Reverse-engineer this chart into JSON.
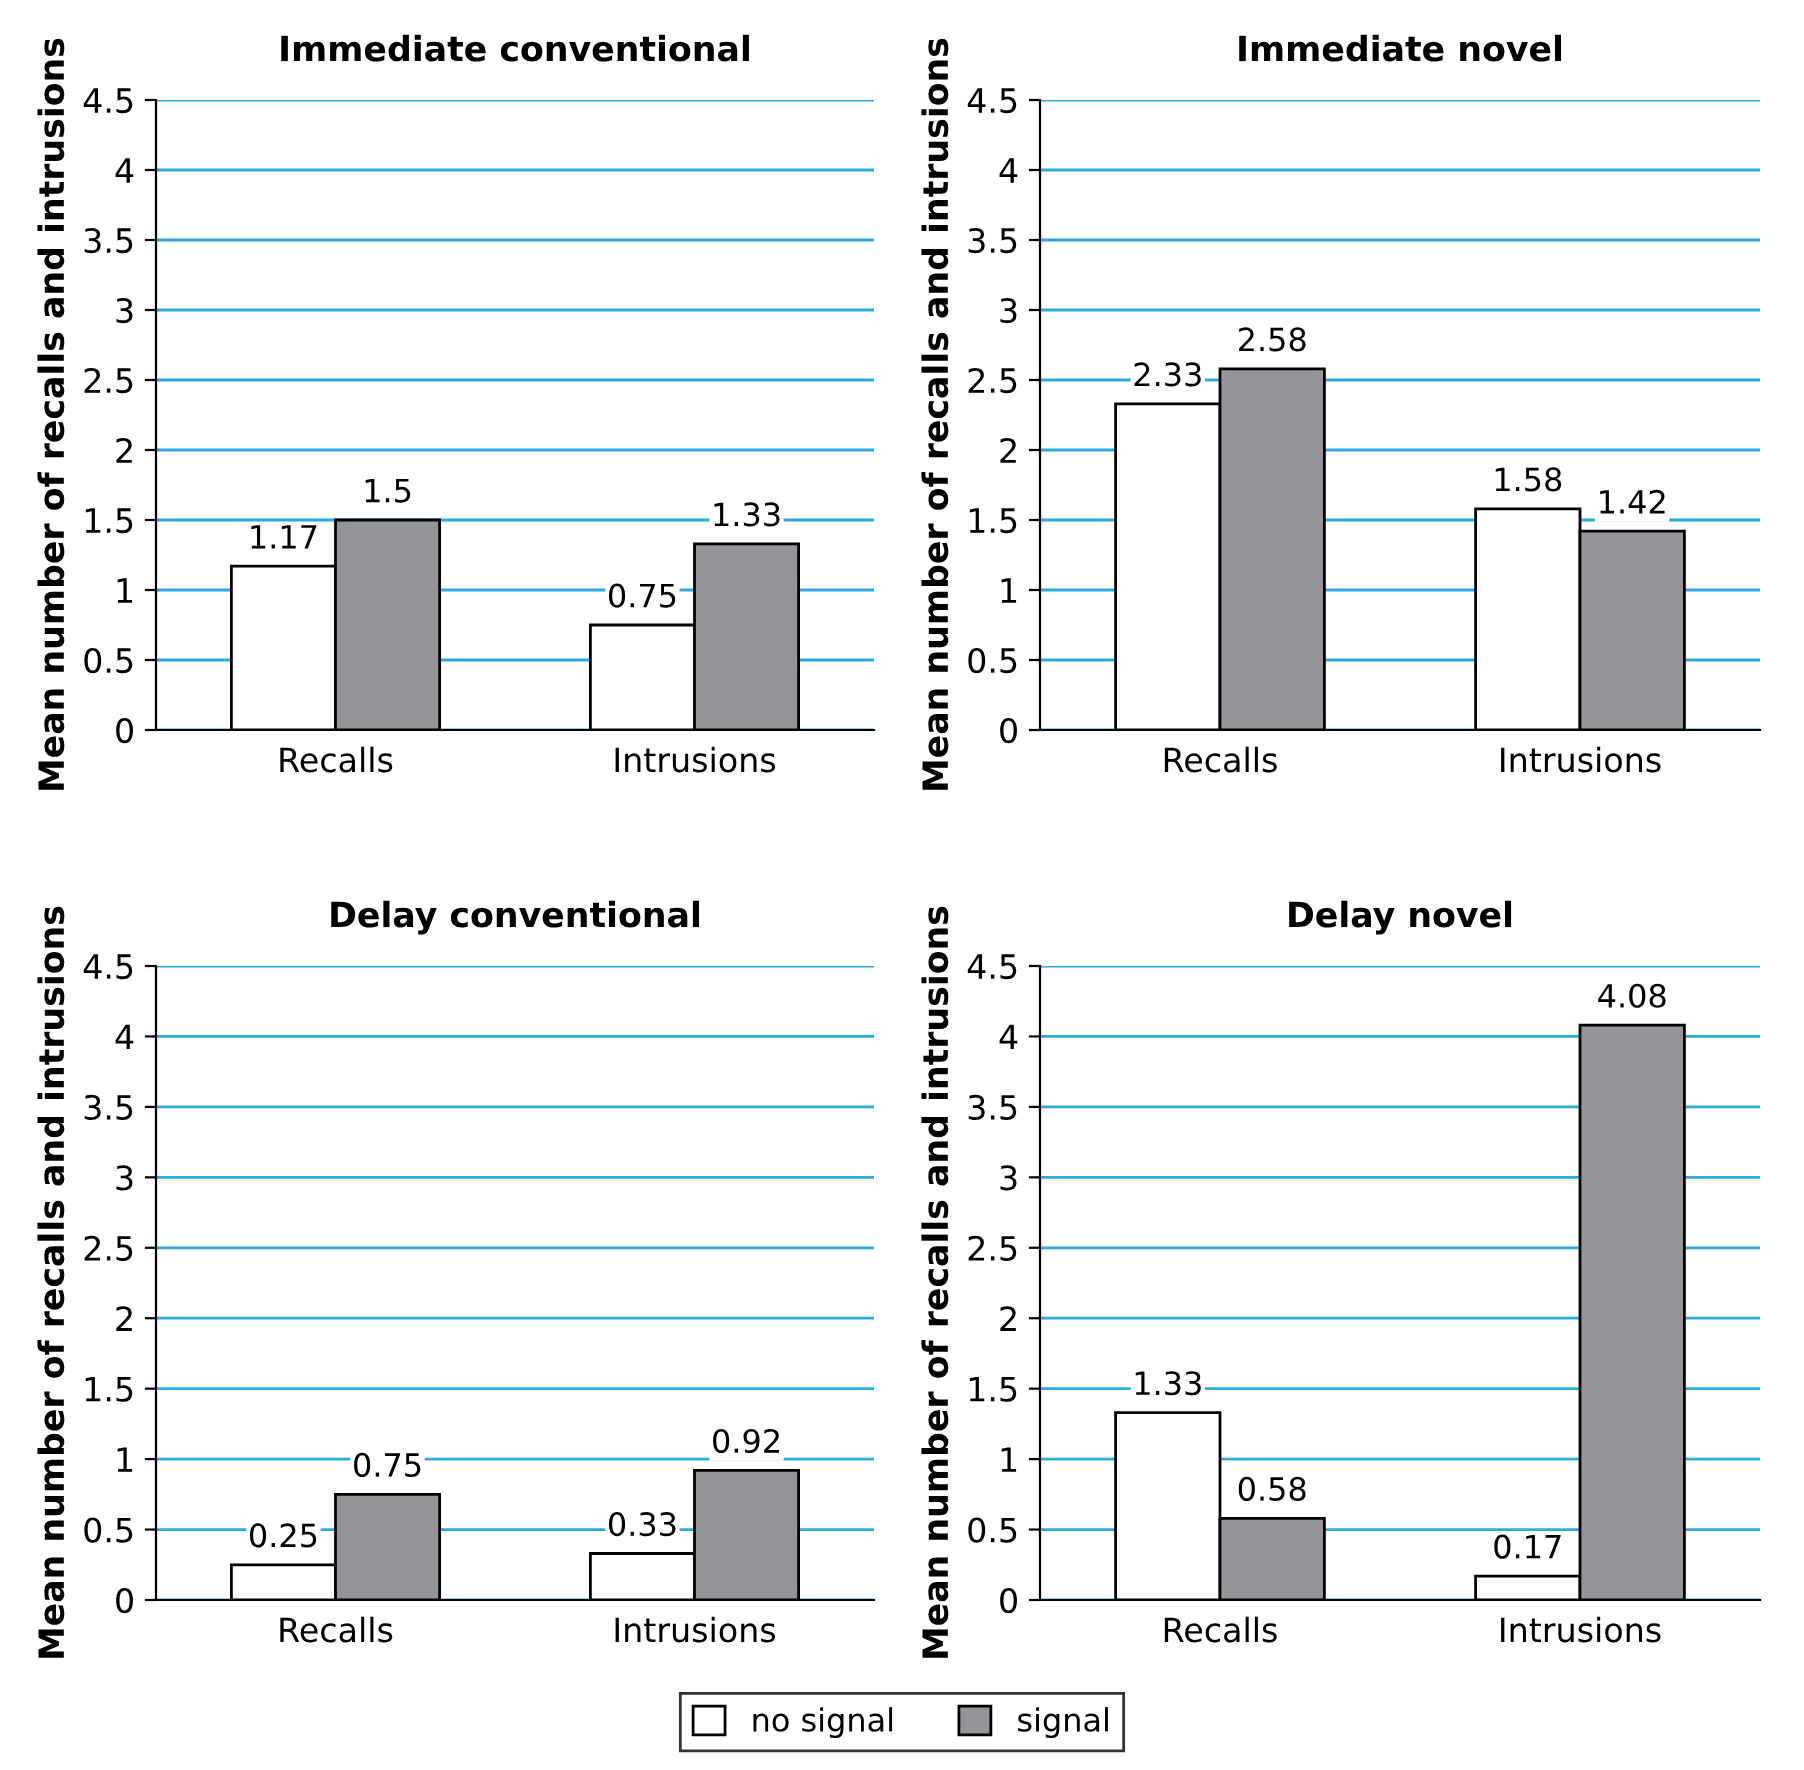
{
  "chart_data": [
    {
      "type": "bar",
      "title": "Immediate conventional",
      "ylabel": "Mean number of recalls and intrusions",
      "categories": [
        "Recalls",
        "Intrusions"
      ],
      "series": [
        {
          "name": "no signal",
          "color": "#ffffff",
          "values": [
            1.17,
            0.75
          ]
        },
        {
          "name": "signal",
          "color": "#939598",
          "values": [
            1.5,
            1.33
          ]
        }
      ],
      "ylim": [
        0,
        4.5
      ],
      "yticks": [
        0,
        0.5,
        1,
        1.5,
        2,
        2.5,
        3,
        3.5,
        4,
        4.5
      ],
      "grid": "y",
      "data_labels": true,
      "legend": "bottom"
    },
    {
      "type": "bar",
      "title": "Immediate novel",
      "ylabel": "Mean number of recalls and intrusions",
      "categories": [
        "Recalls",
        "Intrusions"
      ],
      "series": [
        {
          "name": "no signal",
          "color": "#ffffff",
          "values": [
            2.33,
            1.58
          ]
        },
        {
          "name": "signal",
          "color": "#939598",
          "values": [
            2.58,
            1.42
          ]
        }
      ],
      "ylim": [
        0,
        4.5
      ],
      "yticks": [
        0,
        0.5,
        1,
        1.5,
        2,
        2.5,
        3,
        3.5,
        4,
        4.5
      ],
      "grid": "y",
      "data_labels": true,
      "legend": "bottom"
    },
    {
      "type": "bar",
      "title": "Delay conventional",
      "ylabel": "Mean number of recalls and intrusions",
      "categories": [
        "Recalls",
        "Intrusions"
      ],
      "series": [
        {
          "name": "no signal",
          "color": "#ffffff",
          "values": [
            0.25,
            0.33
          ]
        },
        {
          "name": "signal",
          "color": "#939598",
          "values": [
            0.75,
            0.92
          ]
        }
      ],
      "ylim": [
        0,
        4.5
      ],
      "yticks": [
        0,
        0.5,
        1,
        1.5,
        2,
        2.5,
        3,
        3.5,
        4,
        4.5
      ],
      "grid": "y",
      "data_labels": true,
      "legend": "bottom"
    },
    {
      "type": "bar",
      "title": "Delay novel",
      "ylabel": "Mean number of recalls and intrusions",
      "categories": [
        "Recalls",
        "Intrusions"
      ],
      "series": [
        {
          "name": "no signal",
          "color": "#ffffff",
          "values": [
            1.33,
            0.17
          ]
        },
        {
          "name": "signal",
          "color": "#939598",
          "values": [
            0.58,
            4.08
          ]
        }
      ],
      "ylim": [
        0,
        4.5
      ],
      "yticks": [
        0,
        0.5,
        1,
        1.5,
        2,
        2.5,
        3,
        3.5,
        4,
        4.5
      ],
      "grid": "y",
      "data_labels": true,
      "legend": "bottom"
    }
  ]
}
